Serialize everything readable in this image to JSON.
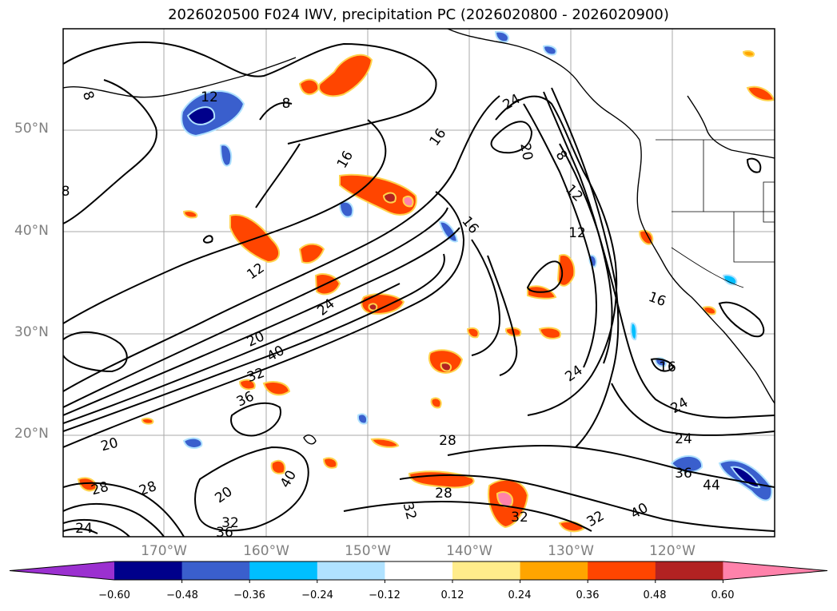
{
  "title": "2026020500 F024 IWV, precipitation PC (2026020800 - 2026020900)",
  "lat_labels": [
    "50°N",
    "40°N",
    "30°N",
    "20°N"
  ],
  "lon_labels": [
    "170°W",
    "160°W",
    "150°W",
    "140°W",
    "130°W",
    "120°W"
  ],
  "colorbar": {
    "ticks": [
      "−0.60",
      "−0.48",
      "−0.36",
      "−0.24",
      "−0.12",
      "0.12",
      "0.24",
      "0.36",
      "0.48",
      "0.60"
    ],
    "colors": [
      "#9b30d0",
      "#00008b",
      "#3a5fcd",
      "#00bfff",
      "#b0e2ff",
      "#ffffff",
      "#ffec8b",
      "#ffa500",
      "#ff4500",
      "#b22222",
      "#ff82ab"
    ]
  },
  "contour_labels": [
    "8",
    "12",
    "8",
    "16",
    "16",
    "24",
    "20",
    "8",
    "12",
    "16",
    "12",
    "16",
    "24",
    "20",
    "40",
    "32",
    "36",
    "20",
    "28",
    "24",
    "24",
    "20",
    "28",
    "28",
    "28",
    "32",
    "32",
    "24",
    "16",
    "12",
    "24",
    "36",
    "44",
    "40",
    "32",
    "32",
    "36",
    "40",
    "8"
  ]
}
